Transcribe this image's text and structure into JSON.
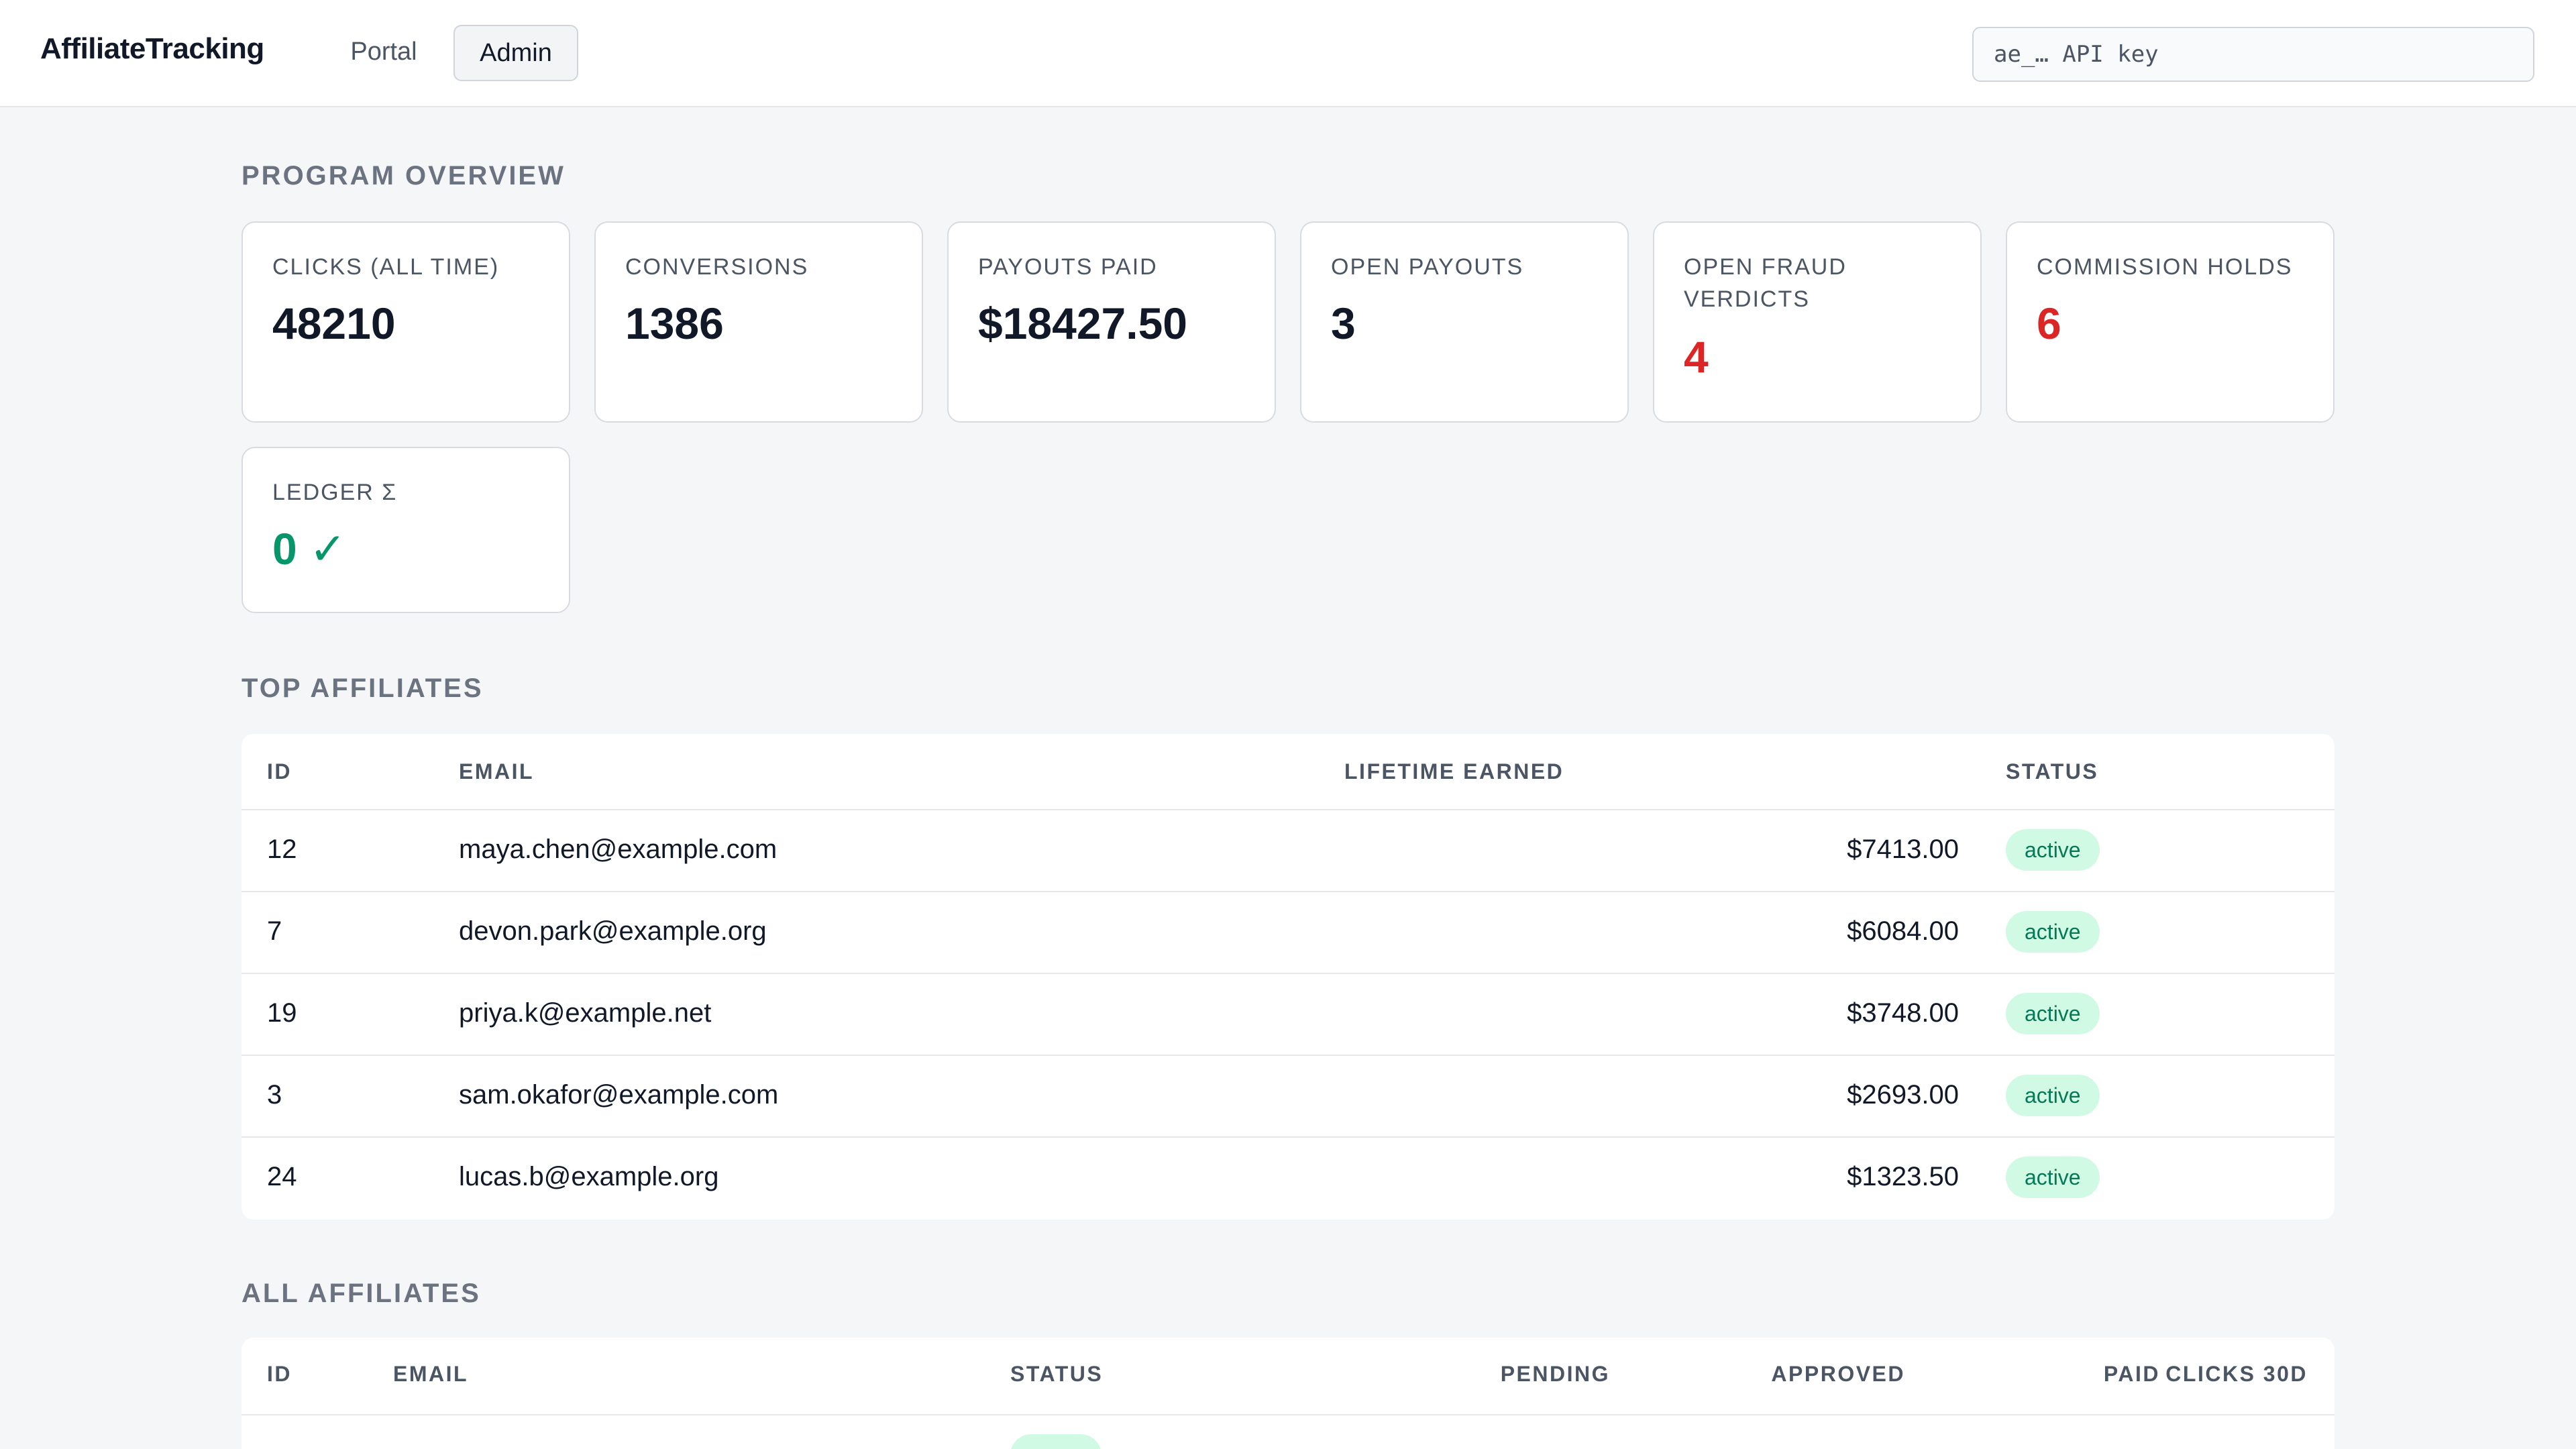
{
  "header": {
    "brand": "AffiliateTracking",
    "tabs": [
      {
        "label": "Portal",
        "active": false
      },
      {
        "label": "Admin",
        "active": true
      }
    ],
    "api_key_placeholder": "ae_… API key"
  },
  "overview": {
    "title": "PROGRAM OVERVIEW",
    "cards": [
      {
        "label": "CLICKS (ALL TIME)",
        "value": "48210"
      },
      {
        "label": "CONVERSIONS",
        "value": "1386"
      },
      {
        "label": "PAYOUTS PAID",
        "value": "$18427.50"
      },
      {
        "label": "OPEN PAYOUTS",
        "value": "3"
      },
      {
        "label": "OPEN FRAUD VERDICTS",
        "value": "4"
      },
      {
        "label": "COMMISSION HOLDS",
        "value": "6"
      },
      {
        "label": "LEDGER Σ",
        "value": "0 ✓"
      }
    ]
  },
  "top_affiliates": {
    "title": "TOP AFFILIATES",
    "columns": [
      "ID",
      "EMAIL",
      "LIFETIME EARNED",
      "STATUS"
    ],
    "rows": [
      {
        "id": "12",
        "email": "maya.chen@example.com",
        "earned": "$7413.00",
        "status": "active"
      },
      {
        "id": "7",
        "email": "devon.park@example.org",
        "earned": "$6084.00",
        "status": "active"
      },
      {
        "id": "19",
        "email": "priya.k@example.net",
        "earned": "$3748.00",
        "status": "active"
      },
      {
        "id": "3",
        "email": "sam.okafor@example.com",
        "earned": "$2693.00",
        "status": "active"
      },
      {
        "id": "24",
        "email": "lucas.b@example.org",
        "earned": "$1323.50",
        "status": "active"
      }
    ]
  },
  "all_affiliates": {
    "title": "ALL AFFILIATES",
    "columns": [
      "ID",
      "EMAIL",
      "STATUS",
      "PENDING",
      "APPROVED",
      "PAID",
      "CLICKS 30D"
    ]
  },
  "colors": {
    "accent_red": "#dc2626",
    "accent_green": "#059669",
    "badge_bg": "#d1fae5"
  }
}
